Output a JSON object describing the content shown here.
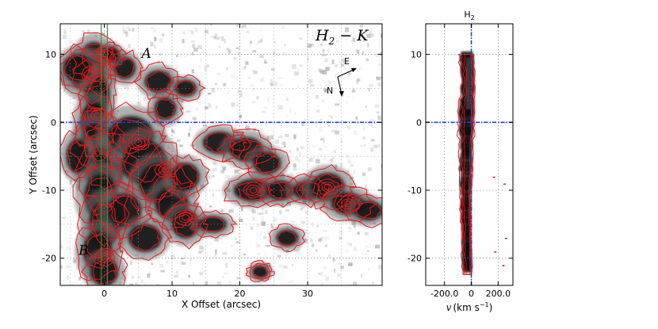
{
  "chart_data": [
    {
      "type": "heatmap",
      "panel": "left",
      "title": "H_2 - K",
      "title_parts": {
        "base": "H",
        "sub": "2",
        "rest": " − K"
      },
      "xlabel": "X Offset (arcsec)",
      "ylabel": "Y Offset (arcsec)",
      "xlim": [
        -6.5,
        41
      ],
      "ylim": [
        -24,
        14.5
      ],
      "xticks": [
        0,
        10,
        20,
        30
      ],
      "yticks": [
        10,
        0,
        -10,
        -20
      ],
      "grid": true,
      "colormap": "grayscale, black = strong emission",
      "contour_color": "#e31a1c",
      "reference_lines": {
        "x": 0,
        "y": 0,
        "color": "#1f3fd6",
        "style": "dash-dot"
      },
      "slit": {
        "x_center": 0,
        "half_width": 0.45,
        "color": "#2ca02c"
      },
      "labels": [
        {
          "text": "A",
          "x": 5.5,
          "y": 9.5
        },
        {
          "text": "B",
          "x": -3.8,
          "y": -19.5
        }
      ],
      "compass": {
        "east": "E",
        "north": "N"
      },
      "emission_knots": [
        {
          "x": 0,
          "y": 10,
          "strength": 1.0
        },
        {
          "x": -2,
          "y": 7,
          "strength": 0.9
        },
        {
          "x": -1,
          "y": 1,
          "strength": 1.0
        },
        {
          "x": 5,
          "y": -3,
          "strength": 0.9
        },
        {
          "x": 9,
          "y": -7,
          "strength": 0.9
        },
        {
          "x": 12,
          "y": -14,
          "strength": 1.0
        },
        {
          "x": 22,
          "y": -10,
          "strength": 0.8
        },
        {
          "x": 33,
          "y": -9.5,
          "strength": 1.0
        },
        {
          "x": 36,
          "y": -12,
          "strength": 0.8
        },
        {
          "x": 0,
          "y": -20,
          "strength": 0.8
        },
        {
          "x": 20,
          "y": -3,
          "strength": 0.6
        },
        {
          "x": 23,
          "y": -22,
          "strength": 0.6
        }
      ]
    },
    {
      "type": "heatmap",
      "panel": "right",
      "title": "H_2",
      "title_parts": {
        "base": "H",
        "sub": "2"
      },
      "xlabel": "v (km s^-1)",
      "xlabel_parts": {
        "var": "v",
        "unit": "(km s",
        "exp": "−1",
        "close": ")"
      },
      "xlim": [
        -340,
        310
      ],
      "ylim": [
        -24,
        14.5
      ],
      "xticks": [
        -200.0,
        0,
        200.0
      ],
      "xtick_labels": [
        "-200.0",
        "0",
        "200.0"
      ],
      "yticks": [
        10,
        0,
        -10,
        -20
      ],
      "grid": true,
      "reference_lines": {
        "x": 0,
        "y": 0,
        "color": "#1f3fd6",
        "style": "dash-dot"
      },
      "emission_profile": [
        {
          "y": 10,
          "v_center": -20,
          "width": 60
        },
        {
          "y": 6,
          "v_center": -10,
          "width": 55
        },
        {
          "y": 1,
          "v_center": -20,
          "width": 65
        },
        {
          "y": -5,
          "v_center": -25,
          "width": 55
        },
        {
          "y": -12,
          "v_center": -30,
          "width": 45
        },
        {
          "y": -18,
          "v_center": -25,
          "width": 40
        },
        {
          "y": -22,
          "v_center": -20,
          "width": 40
        }
      ]
    }
  ]
}
